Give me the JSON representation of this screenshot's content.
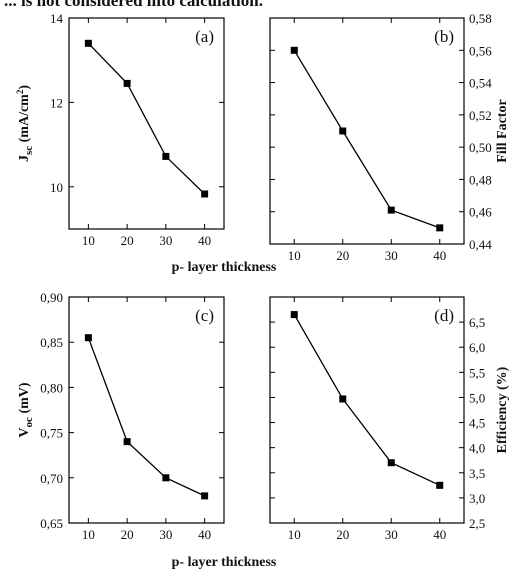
{
  "top_text": "... is not considered into calculation.",
  "shared_xlabel": "p- layer thickness",
  "chart_data": [
    {
      "id": "a",
      "type": "line",
      "panel_label": "(a)",
      "x": [
        10,
        20,
        30,
        40
      ],
      "series": [
        {
          "values": [
            13.4,
            12.45,
            10.72,
            9.83
          ]
        }
      ],
      "xlim": [
        5,
        45
      ],
      "ylim": [
        9.0,
        14.0
      ],
      "xticks": [
        10,
        20,
        30,
        40
      ],
      "yticks": [
        10,
        12,
        14
      ],
      "ytick_labels": [
        "10",
        "12",
        "14"
      ],
      "ylabel": "J",
      "ylabel_sub": "sc",
      "ylabel_unit": "(mA/cm",
      "ylabel_sup": "2",
      "ylabel_close": ")",
      "axis_side": "left",
      "marker": "square",
      "color": "#000000"
    },
    {
      "id": "b",
      "type": "line",
      "panel_label": "(b)",
      "x": [
        10,
        20,
        30,
        40
      ],
      "series": [
        {
          "values": [
            0.56,
            0.51,
            0.461,
            0.45
          ]
        }
      ],
      "xlim": [
        5,
        45
      ],
      "ylim": [
        0.44,
        0.58
      ],
      "xticks": [
        10,
        20,
        30,
        40
      ],
      "yticks": [
        0.44,
        0.46,
        0.48,
        0.5,
        0.52,
        0.54,
        0.56,
        0.58
      ],
      "ytick_labels": [
        "0,44",
        "0,46",
        "0,48",
        "0,50",
        "0,52",
        "0,54",
        "0,56",
        "0,58"
      ],
      "ylabel": "Fill Factor",
      "axis_side": "right",
      "marker": "square",
      "color": "#000000"
    },
    {
      "id": "c",
      "type": "line",
      "panel_label": "(c)",
      "x": [
        10,
        20,
        30,
        40
      ],
      "series": [
        {
          "values": [
            0.855,
            0.74,
            0.7,
            0.68
          ]
        }
      ],
      "xlim": [
        5,
        45
      ],
      "ylim": [
        0.65,
        0.9
      ],
      "xticks": [
        10,
        20,
        30,
        40
      ],
      "yticks": [
        0.65,
        0.7,
        0.75,
        0.8,
        0.85,
        0.9
      ],
      "ytick_labels": [
        "0,65",
        "0,70",
        "0,75",
        "0,80",
        "0,85",
        "0,90"
      ],
      "ylabel": "V",
      "ylabel_sub": "oc",
      "ylabel_unit": "(mV)",
      "axis_side": "left",
      "marker": "square",
      "color": "#000000"
    },
    {
      "id": "d",
      "type": "line",
      "panel_label": "(d)",
      "x": [
        10,
        20,
        30,
        40
      ],
      "series": [
        {
          "values": [
            6.65,
            4.97,
            3.7,
            3.25
          ]
        }
      ],
      "xlim": [
        5,
        45
      ],
      "ylim": [
        2.5,
        7.0
      ],
      "xticks": [
        10,
        20,
        30,
        40
      ],
      "yticks": [
        2.5,
        3.0,
        3.5,
        4.0,
        4.5,
        5.0,
        5.5,
        6.0,
        6.5
      ],
      "ytick_labels": [
        "2,5",
        "3,0",
        "3,5",
        "4,0",
        "4,5",
        "5,0",
        "5,5",
        "6,0",
        "6,5"
      ],
      "ylabel": "Efficiency (%)",
      "axis_side": "right",
      "marker": "square",
      "color": "#000000"
    }
  ]
}
